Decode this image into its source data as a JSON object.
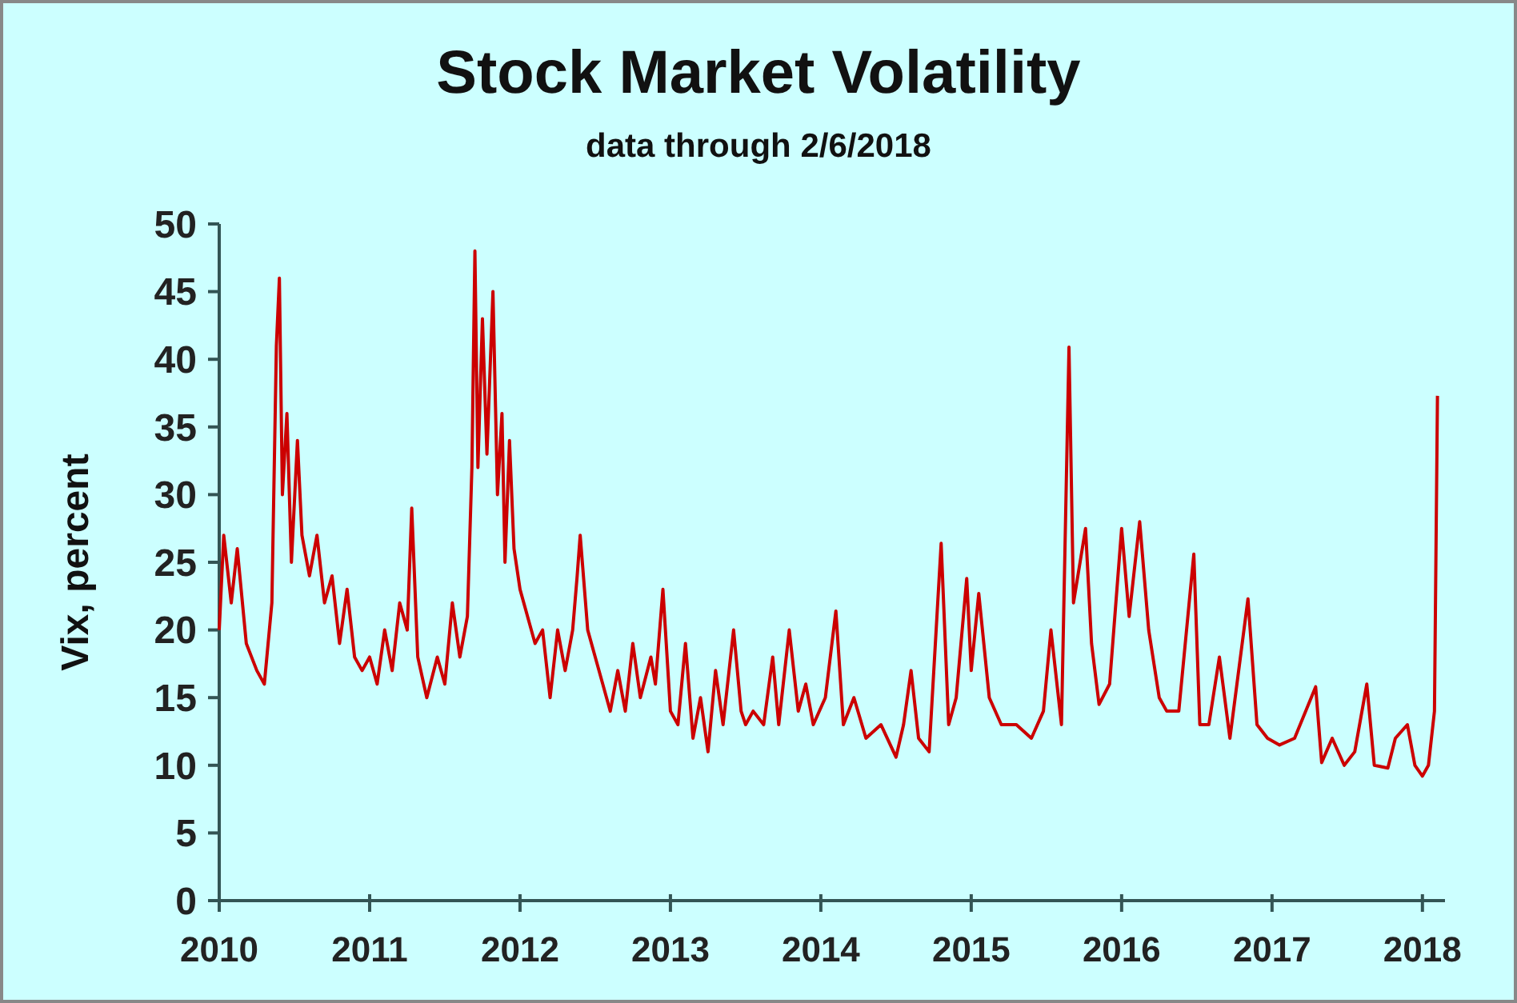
{
  "chart_data": {
    "type": "line",
    "title": "Stock Market Volatility",
    "subtitle": "data through 2/6/2018",
    "ylabel": "Vix, percent",
    "x": [
      2010.0,
      2010.03,
      2010.08,
      2010.12,
      2010.18,
      2010.25,
      2010.3,
      2010.35,
      2010.38,
      2010.4,
      2010.42,
      2010.45,
      2010.48,
      2010.52,
      2010.55,
      2010.6,
      2010.65,
      2010.7,
      2010.75,
      2010.8,
      2010.85,
      2010.9,
      2010.95,
      2011.0,
      2011.05,
      2011.1,
      2011.15,
      2011.2,
      2011.25,
      2011.28,
      2011.32,
      2011.38,
      2011.45,
      2011.5,
      2011.55,
      2011.6,
      2011.65,
      2011.68,
      2011.7,
      2011.72,
      2011.75,
      2011.78,
      2011.82,
      2011.85,
      2011.88,
      2011.9,
      2011.93,
      2011.96,
      2012.0,
      2012.05,
      2012.1,
      2012.15,
      2012.2,
      2012.25,
      2012.3,
      2012.35,
      2012.38,
      2012.4,
      2012.45,
      2012.5,
      2012.55,
      2012.6,
      2012.65,
      2012.7,
      2012.75,
      2012.8,
      2012.87,
      2012.9,
      2012.95,
      2013.0,
      2013.05,
      2013.1,
      2013.15,
      2013.2,
      2013.25,
      2013.3,
      2013.35,
      2013.42,
      2013.47,
      2013.5,
      2013.55,
      2013.62,
      2013.68,
      2013.72,
      2013.79,
      2013.85,
      2013.9,
      2013.95,
      2014.03,
      2014.1,
      2014.15,
      2014.22,
      2014.3,
      2014.4,
      2014.5,
      2014.55,
      2014.6,
      2014.65,
      2014.72,
      2014.8,
      2014.85,
      2014.9,
      2014.97,
      2015.0,
      2015.05,
      2015.12,
      2015.2,
      2015.3,
      2015.4,
      2015.48,
      2015.53,
      2015.6,
      2015.65,
      2015.68,
      2015.76,
      2015.8,
      2015.85,
      2015.92,
      2016.0,
      2016.05,
      2016.12,
      2016.18,
      2016.25,
      2016.3,
      2016.38,
      2016.48,
      2016.52,
      2016.58,
      2016.65,
      2016.72,
      2016.84,
      2016.9,
      2016.97,
      2017.05,
      2017.15,
      2017.29,
      2017.33,
      2017.4,
      2017.48,
      2017.55,
      2017.63,
      2017.68,
      2017.77,
      2017.82,
      2017.9,
      2017.95,
      2018.0,
      2018.04,
      2018.08,
      2018.1
    ],
    "values": [
      20,
      27,
      22,
      26,
      19,
      17,
      16,
      22,
      41,
      46,
      30,
      36,
      25,
      34,
      27,
      24,
      27,
      22,
      24,
      19,
      23,
      18,
      17,
      18,
      16,
      20,
      17,
      22,
      20,
      29,
      18,
      15,
      18,
      16,
      22,
      18,
      21,
      32,
      48,
      32,
      43,
      33,
      45,
      30,
      36,
      25,
      34,
      26,
      23,
      21,
      19,
      20,
      15,
      20,
      17,
      20,
      24,
      27,
      20,
      18,
      16,
      14,
      17,
      14,
      19,
      15,
      18,
      16,
      23,
      14,
      13,
      19,
      12,
      15,
      11,
      17,
      13,
      20,
      14,
      13,
      14,
      13,
      18,
      13,
      20,
      14,
      16,
      13,
      15,
      21.4,
      13,
      15,
      12,
      13,
      10.6,
      13,
      17,
      12,
      11,
      26.4,
      13,
      15,
      23.8,
      17,
      22.7,
      15,
      13,
      13,
      12,
      14,
      20,
      13,
      40.9,
      22,
      27.5,
      19,
      14.5,
      16,
      27.5,
      21,
      28,
      20,
      15,
      14,
      14,
      25.6,
      13,
      13,
      18,
      12,
      22.3,
      13,
      12,
      11.5,
      12,
      15.8,
      10.2,
      12,
      10,
      11,
      16,
      10,
      9.8,
      12,
      13,
      10,
      9.2,
      10,
      14,
      37.3
    ],
    "color": "#cc0000",
    "xlim": [
      2010,
      2018.15
    ],
    "xticks": [
      2010,
      2011,
      2012,
      2013,
      2014,
      2015,
      2016,
      2017,
      2018
    ],
    "ylim": [
      0,
      50
    ],
    "yticks": [
      0,
      5,
      10,
      15,
      20,
      25,
      30,
      35,
      40,
      45,
      50
    ],
    "grid": false
  }
}
